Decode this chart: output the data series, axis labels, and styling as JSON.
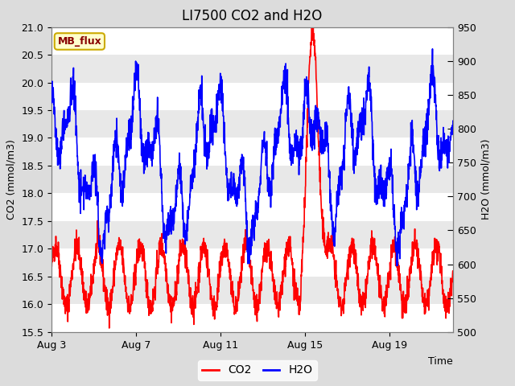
{
  "title": "LI7500 CO2 and H2O",
  "xlabel": "Time",
  "ylabel_left": "CO2 (mmol/m3)",
  "ylabel_right": "H2O (mmol/m3)",
  "ylim_left": [
    15.5,
    21.0
  ],
  "ylim_right": [
    500,
    950
  ],
  "y_ticks_left": [
    15.5,
    16.0,
    16.5,
    17.0,
    17.5,
    18.0,
    18.5,
    19.0,
    19.5,
    20.0,
    20.5,
    21.0
  ],
  "y_ticks_right": [
    500,
    550,
    600,
    650,
    700,
    750,
    800,
    850,
    900,
    950
  ],
  "x_tick_labels": [
    "Aug 3",
    "Aug 7",
    "Aug 11",
    "Aug 15",
    "Aug 19"
  ],
  "x_tick_positions": [
    0,
    4,
    8,
    12,
    16
  ],
  "co2_color": "#FF0000",
  "h2o_color": "#0000FF",
  "bg_color": "#DCDCDC",
  "plot_bg_color": "#E8E8E8",
  "annotation_text": "MB_flux",
  "annotation_bg": "#FFFFCC",
  "annotation_border": "#CCAA00",
  "annotation_text_color": "#880000",
  "legend_co2": "CO2",
  "legend_h2o": "H2O",
  "grid_color": "#FFFFFF",
  "title_fontsize": 12,
  "label_fontsize": 9,
  "tick_fontsize": 9,
  "line_width": 1.2
}
